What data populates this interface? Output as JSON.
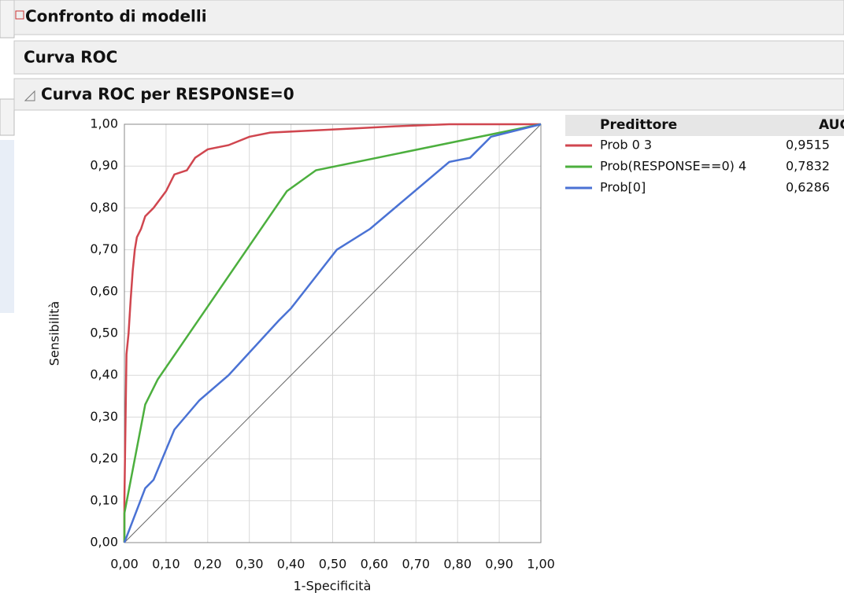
{
  "panels": {
    "title": "Confronto di modelli",
    "section": "Curva ROC",
    "subsection": "Curva ROC per RESPONSE=0"
  },
  "chart_data": {
    "type": "line",
    "xlabel": "1-Specificità",
    "ylabel": "Sensibilità",
    "xlim": [
      0,
      1
    ],
    "ylim": [
      0,
      1
    ],
    "xticks": [
      {
        "value": 0,
        "label": "0,00"
      },
      {
        "value": 0.1,
        "label": "0,10"
      },
      {
        "value": 0.2,
        "label": "0,20"
      },
      {
        "value": 0.3,
        "label": "0,30"
      },
      {
        "value": 0.4,
        "label": "0,40"
      },
      {
        "value": 0.5,
        "label": "0,50"
      },
      {
        "value": 0.6,
        "label": "0,60"
      },
      {
        "value": 0.7,
        "label": "0,70"
      },
      {
        "value": 0.8,
        "label": "0,80"
      },
      {
        "value": 0.9,
        "label": "0,90"
      },
      {
        "value": 1,
        "label": "1,00"
      }
    ],
    "yticks": [
      {
        "value": 0,
        "label": "0,00"
      },
      {
        "value": 0.1,
        "label": "0,10"
      },
      {
        "value": 0.2,
        "label": "0,20"
      },
      {
        "value": 0.3,
        "label": "0,30"
      },
      {
        "value": 0.4,
        "label": "0,40"
      },
      {
        "value": 0.5,
        "label": "0,50"
      },
      {
        "value": 0.6,
        "label": "0,60"
      },
      {
        "value": 0.7,
        "label": "0,70"
      },
      {
        "value": 0.8,
        "label": "0,80"
      },
      {
        "value": 0.9,
        "label": "0,90"
      },
      {
        "value": 1,
        "label": "1,00"
      }
    ],
    "grid": true,
    "series": [
      {
        "name": "Prob 0 3",
        "color": "#d0464f",
        "x": [
          0,
          0,
          0.005,
          0.01,
          0.015,
          0.02,
          0.025,
          0.03,
          0.04,
          0.05,
          0.07,
          0.1,
          0.12,
          0.15,
          0.17,
          0.2,
          0.25,
          0.3,
          0.35,
          0.45,
          0.55,
          0.65,
          0.78,
          1
        ],
        "values": [
          0,
          0.1,
          0.45,
          0.5,
          0.58,
          0.65,
          0.7,
          0.73,
          0.75,
          0.78,
          0.8,
          0.84,
          0.88,
          0.89,
          0.92,
          0.94,
          0.95,
          0.97,
          0.98,
          0.985,
          0.99,
          0.995,
          1,
          1
        ]
      },
      {
        "name": "Prob(RESPONSE==0) 4",
        "color": "#4caf3e",
        "x": [
          0,
          0,
          0.05,
          0.08,
          0.39,
          0.46,
          1
        ],
        "values": [
          0,
          0.07,
          0.33,
          0.39,
          0.84,
          0.89,
          1
        ]
      },
      {
        "name": "Prob[0]",
        "color": "#4a72d4",
        "x": [
          0,
          0.05,
          0.07,
          0.12,
          0.18,
          0.25,
          0.37,
          0.4,
          0.51,
          0.59,
          0.78,
          0.83,
          0.88,
          1
        ],
        "values": [
          0,
          0.13,
          0.15,
          0.27,
          0.34,
          0.4,
          0.53,
          0.56,
          0.7,
          0.75,
          0.91,
          0.92,
          0.97,
          1
        ]
      }
    ],
    "auc_table": {
      "columns": [
        "Predittore",
        "AUC"
      ],
      "values": [
        0.9515,
        0.7832,
        0.6286
      ],
      "value_labels": [
        "0,9515",
        "0,7832",
        "0,6286"
      ]
    }
  }
}
